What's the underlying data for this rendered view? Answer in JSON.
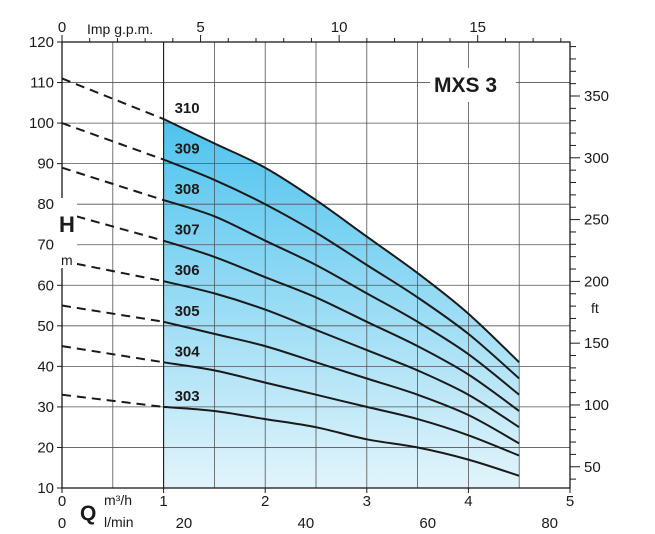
{
  "chart_data": {
    "type": "line",
    "title": "MXS 3",
    "y_label_main": "H",
    "y_label_unit": "m",
    "y_right_unit": "ft",
    "x_label_main": "Q",
    "x_unit_m3h": "m³/h",
    "x_unit_lmin": "l/min",
    "x_unit_gpm": "Imp g.p.m.",
    "ylim": [
      10,
      120
    ],
    "xlim": [
      0,
      5
    ],
    "grid": true,
    "left_ticks": [
      "10",
      "20",
      "30",
      "40",
      "50",
      "60",
      "70",
      "80",
      "90",
      "100",
      "110",
      "120"
    ],
    "right_ticks": [
      "50",
      "100",
      "150",
      "200",
      "250",
      "300",
      "350"
    ],
    "bottom_ticks_m3h": [
      "0",
      "1",
      "2",
      "3",
      "4",
      "5"
    ],
    "bottom_ticks_lmin": [
      "0",
      "20",
      "40",
      "60",
      "80"
    ],
    "top_ticks_gpm": [
      "0",
      "5",
      "10",
      "15"
    ],
    "operating_range_m3h": [
      1,
      4.5
    ],
    "colors": {
      "fill_top": "#4dc3ee",
      "fill_bottom": "#e3f4fb",
      "line": "#1a1a1a"
    },
    "series": [
      {
        "name": "310",
        "x": [
          0,
          1,
          1.5,
          2,
          2.5,
          3,
          3.5,
          4,
          4.5
        ],
        "y": [
          111,
          101,
          95,
          89,
          81,
          72,
          63,
          53,
          41
        ]
      },
      {
        "name": "309",
        "x": [
          0,
          1,
          1.5,
          2,
          2.5,
          3,
          3.5,
          4,
          4.5
        ],
        "y": [
          100,
          91,
          86,
          80,
          73,
          65,
          57,
          48,
          37
        ]
      },
      {
        "name": "308",
        "x": [
          0,
          1,
          1.5,
          2,
          2.5,
          3,
          3.5,
          4,
          4.5
        ],
        "y": [
          89,
          81,
          77,
          71,
          65,
          58,
          51,
          43,
          33
        ]
      },
      {
        "name": "307",
        "x": [
          0,
          1,
          1.5,
          2,
          2.5,
          3,
          3.5,
          4,
          4.5
        ],
        "y": [
          78,
          71,
          67,
          62,
          57,
          51,
          45,
          38,
          29
        ]
      },
      {
        "name": "306",
        "x": [
          0,
          1,
          1.5,
          2,
          2.5,
          3,
          3.5,
          4,
          4.5
        ],
        "y": [
          66,
          61,
          58,
          54,
          49,
          44,
          39,
          33,
          25
        ]
      },
      {
        "name": "305",
        "x": [
          0,
          1,
          1.5,
          2,
          2.5,
          3,
          3.5,
          4,
          4.5
        ],
        "y": [
          55,
          51,
          48,
          45,
          41,
          37,
          33,
          28,
          21
        ]
      },
      {
        "name": "304",
        "x": [
          0,
          1,
          1.5,
          2,
          2.5,
          3,
          3.5,
          4,
          4.5
        ],
        "y": [
          45,
          41,
          39,
          36,
          33,
          30,
          27,
          23,
          18
        ]
      },
      {
        "name": "303",
        "x": [
          0,
          1,
          1.5,
          2,
          2.5,
          3,
          3.5,
          4,
          4.5
        ],
        "y": [
          33,
          30,
          29,
          27,
          25,
          22,
          20,
          17,
          13
        ]
      }
    ]
  }
}
